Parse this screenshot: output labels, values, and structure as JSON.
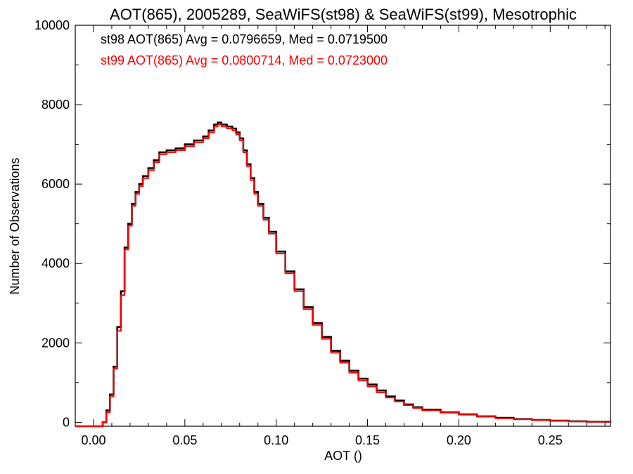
{
  "chart_data": {
    "type": "line",
    "step": true,
    "title": "AOT(865), 2005289, SeaWiFS(st98) & SeaWiFS(st99), Mesotrophic",
    "xlabel": "AOT ()",
    "ylabel": "Number of Observations",
    "xlim": [
      -0.01,
      0.283
    ],
    "ylim": [
      -100,
      10000
    ],
    "xticks": [
      "0.00",
      "0.05",
      "0.10",
      "0.15",
      "0.20",
      "0.25"
    ],
    "yticks": [
      "0",
      "2000",
      "4000",
      "6000",
      "8000",
      "10000"
    ],
    "grid": false,
    "legend": "top-left",
    "annotations": [
      "st98 AOT(865) Avg = 0.0796659, Med = 0.0719500",
      "st99 AOT(865) Avg = 0.0800714, Med = 0.0723000"
    ],
    "series": [
      {
        "color": "#000000",
        "x": [
          -0.01,
          -0.005,
          0.0,
          0.003,
          0.005,
          0.007,
          0.009,
          0.011,
          0.013,
          0.015,
          0.017,
          0.019,
          0.021,
          0.023,
          0.025,
          0.027,
          0.03,
          0.033,
          0.036,
          0.04,
          0.045,
          0.05,
          0.055,
          0.06,
          0.063,
          0.066,
          0.068,
          0.07,
          0.073,
          0.076,
          0.078,
          0.08,
          0.082,
          0.084,
          0.086,
          0.088,
          0.09,
          0.093,
          0.096,
          0.1,
          0.105,
          0.11,
          0.115,
          0.12,
          0.125,
          0.13,
          0.135,
          0.14,
          0.145,
          0.15,
          0.155,
          0.16,
          0.165,
          0.17,
          0.175,
          0.18,
          0.19,
          0.2,
          0.21,
          0.22,
          0.23,
          0.24,
          0.25,
          0.26,
          0.27,
          0.283
        ],
        "y": [
          -100,
          -100,
          -100,
          -100,
          0,
          300,
          700,
          1400,
          2400,
          3300,
          4400,
          5000,
          5500,
          5800,
          6000,
          6200,
          6400,
          6600,
          6800,
          6850,
          6900,
          7000,
          7100,
          7200,
          7350,
          7500,
          7550,
          7500,
          7450,
          7400,
          7300,
          7150,
          6850,
          6500,
          6150,
          5800,
          5500,
          5150,
          4800,
          4300,
          3800,
          3350,
          2900,
          2500,
          2150,
          1800,
          1550,
          1300,
          1100,
          950,
          800,
          650,
          550,
          450,
          380,
          320,
          250,
          200,
          150,
          110,
          80,
          60,
          40,
          25,
          15,
          5
        ]
      },
      {
        "color": "#ff0000",
        "x": [
          -0.01,
          -0.005,
          0.0,
          0.003,
          0.005,
          0.007,
          0.009,
          0.011,
          0.013,
          0.015,
          0.017,
          0.019,
          0.021,
          0.023,
          0.025,
          0.027,
          0.03,
          0.033,
          0.036,
          0.04,
          0.045,
          0.05,
          0.055,
          0.06,
          0.063,
          0.066,
          0.068,
          0.07,
          0.073,
          0.076,
          0.078,
          0.08,
          0.082,
          0.084,
          0.086,
          0.088,
          0.09,
          0.093,
          0.096,
          0.1,
          0.105,
          0.11,
          0.115,
          0.12,
          0.125,
          0.13,
          0.135,
          0.14,
          0.145,
          0.15,
          0.155,
          0.16,
          0.165,
          0.17,
          0.175,
          0.18,
          0.19,
          0.2,
          0.21,
          0.22,
          0.23,
          0.24,
          0.25,
          0.26,
          0.27,
          0.283
        ],
        "y": [
          -100,
          -100,
          -100,
          -100,
          0,
          250,
          650,
          1350,
          2300,
          3200,
          4350,
          4950,
          5450,
          5750,
          5950,
          6150,
          6350,
          6550,
          6750,
          6800,
          6850,
          6950,
          7050,
          7150,
          7300,
          7450,
          7500,
          7450,
          7400,
          7350,
          7250,
          7100,
          6800,
          6450,
          6100,
          5750,
          5450,
          5100,
          4750,
          4250,
          3750,
          3300,
          2850,
          2450,
          2100,
          1750,
          1500,
          1250,
          1050,
          900,
          750,
          620,
          520,
          430,
          360,
          300,
          240,
          190,
          140,
          100,
          75,
          55,
          35,
          20,
          12,
          5
        ]
      }
    ]
  }
}
